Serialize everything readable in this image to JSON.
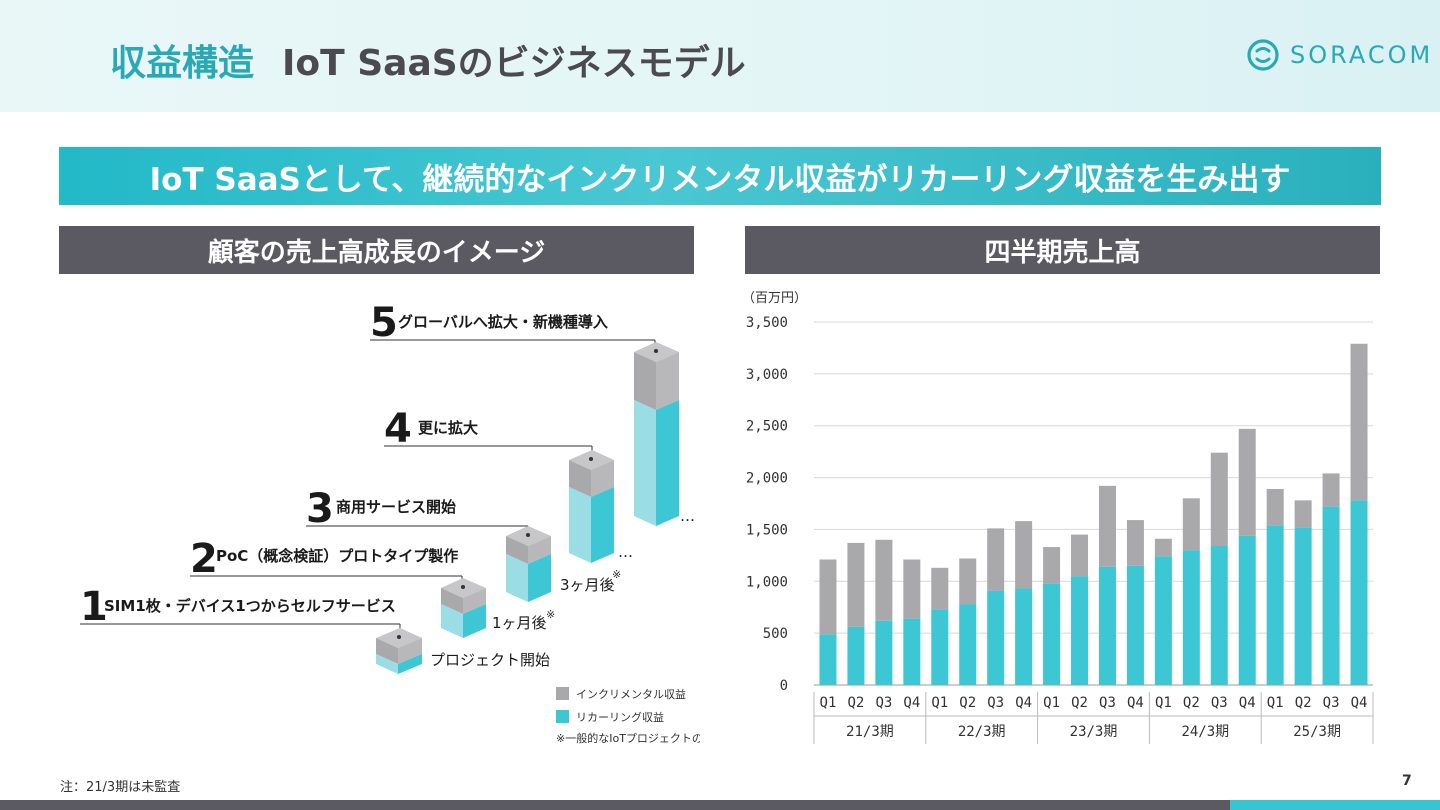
{
  "header": {
    "title_primary": "収益構造",
    "title_secondary": "IoT SaaSのビジネスモデル",
    "logo_text": "SORACOM"
  },
  "banner": "IoT SaaSとして、継続的なインクリメンタル収益がリカーリング収益を生み出す",
  "left_section": {
    "heading": "顧客の売上高成長のイメージ",
    "stages": [
      {
        "num": "1",
        "label": "SIM1枚・デバイス1つからセルフサービス",
        "caption": "プロジェクト開始"
      },
      {
        "num": "2",
        "label": "PoC（概念検証）プロトタイプ製作",
        "caption": "1ヶ月後"
      },
      {
        "num": "3",
        "label": "商用サービス開始",
        "caption": "3ヶ月後"
      },
      {
        "num": "4",
        "label": "更に拡大",
        "caption": ""
      },
      {
        "num": "5",
        "label": "グローバルへ拡大・新機種導入",
        "caption": ""
      }
    ],
    "ellipsis": "…",
    "note_mark": "※",
    "legend": {
      "incremental": "インクリメンタル収益",
      "recurring": "リカーリング収益",
      "note": "※一般的なIoTプロジェクトの一例"
    }
  },
  "right_section": {
    "heading": "四半期売上高"
  },
  "colors": {
    "teal": "#3dc6d3",
    "teal_light": "#9adde4",
    "gray": "#a9a9ab",
    "gray_light": "#c7c7c9",
    "header_teal": "#2aa9b4",
    "dark_gray": "#5b5a63"
  },
  "chart_data": {
    "type": "bar",
    "stacked": true,
    "unit_label": "（百万円）",
    "categories": [
      "Q1",
      "Q2",
      "Q3",
      "Q4",
      "Q1",
      "Q2",
      "Q3",
      "Q4",
      "Q1",
      "Q2",
      "Q3",
      "Q4",
      "Q1",
      "Q2",
      "Q3",
      "Q4",
      "Q1",
      "Q2",
      "Q3",
      "Q4"
    ],
    "groups": [
      {
        "label": "21/3期",
        "count": 4
      },
      {
        "label": "22/3期",
        "count": 4
      },
      {
        "label": "23/3期",
        "count": 4
      },
      {
        "label": "24/3期",
        "count": 4
      },
      {
        "label": "25/3期",
        "count": 4
      }
    ],
    "series": [
      {
        "name": "リカーリング収益",
        "color": "#3dc6d3",
        "values": [
          490,
          560,
          620,
          640,
          730,
          780,
          910,
          930,
          980,
          1050,
          1140,
          1150,
          1240,
          1300,
          1340,
          1440,
          1540,
          1520,
          1720,
          1780
        ]
      },
      {
        "name": "インクリメンタル収益",
        "color": "#a9a9ab",
        "values": [
          720,
          810,
          780,
          570,
          400,
          440,
          600,
          650,
          350,
          400,
          780,
          440,
          170,
          500,
          900,
          1030,
          350,
          260,
          320,
          1510
        ]
      }
    ],
    "yticks": [
      "0",
      "500",
      "1,000",
      "1,500",
      "2,000",
      "2,500",
      "3,000",
      "3,500"
    ],
    "ylim": [
      0,
      3500
    ],
    "grid": true
  },
  "footer": {
    "note": "注：21/3期は未監査",
    "page": "7"
  }
}
